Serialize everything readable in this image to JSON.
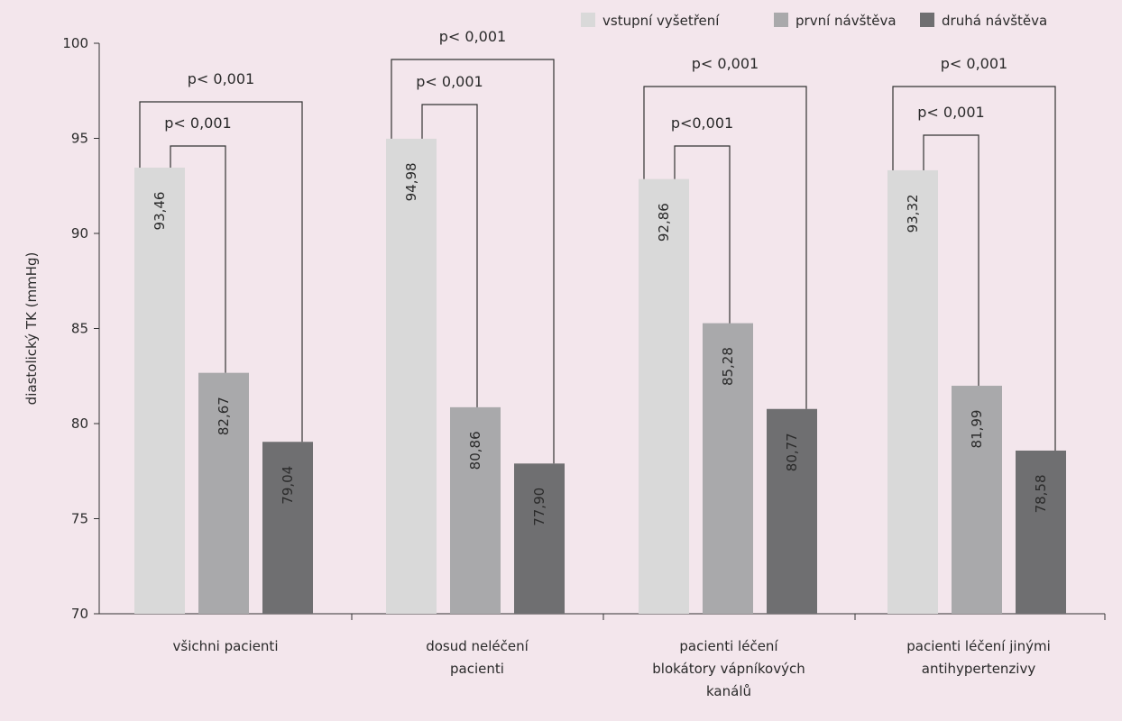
{
  "chart_data": {
    "type": "bar",
    "title": "",
    "xlabel": "",
    "ylabel": "diastolický TK (mmHg)",
    "ylim": [
      70,
      100
    ],
    "yticks": [
      70,
      75,
      80,
      85,
      90,
      95,
      100
    ],
    "grid": false,
    "legend_position": "top-right",
    "categories": [
      [
        "všichni pacienti"
      ],
      [
        "dosud neléčení",
        "pacienti"
      ],
      [
        "pacienti léčení",
        "blokátory vápníkových",
        "kanálů"
      ],
      [
        "pacienti léčení jinými",
        "antihypertenzivy"
      ]
    ],
    "series": [
      {
        "name": "vstupní vyšetření",
        "color": "#d9d9d9",
        "values": [
          93.46,
          94.98,
          92.86,
          93.32
        ],
        "labels": [
          "93,46",
          "94,98",
          "92,86",
          "93,32"
        ]
      },
      {
        "name": "první návštěva",
        "color": "#a9a9ab",
        "values": [
          82.67,
          80.86,
          85.28,
          81.99
        ],
        "labels": [
          "82,67",
          "80,86",
          "85,28",
          "81,99"
        ]
      },
      {
        "name": "druhá návštěva",
        "color": "#6f6f71",
        "values": [
          79.04,
          77.9,
          80.77,
          78.58
        ],
        "labels": [
          "79,04",
          "77,90",
          "80,77",
          "78,58"
        ]
      }
    ],
    "annotations": [
      {
        "category": 0,
        "from": 0,
        "to": 2,
        "label": "p< 0,001"
      },
      {
        "category": 0,
        "from": 0,
        "to": 1,
        "label": "p< 0,001"
      },
      {
        "category": 1,
        "from": 0,
        "to": 2,
        "label": "p< 0,001"
      },
      {
        "category": 1,
        "from": 0,
        "to": 1,
        "label": "p< 0,001"
      },
      {
        "category": 2,
        "from": 0,
        "to": 2,
        "label": "p< 0,001"
      },
      {
        "category": 2,
        "from": 0,
        "to": 1,
        "label": "p<0,001"
      },
      {
        "category": 3,
        "from": 0,
        "to": 2,
        "label": "p< 0,001"
      },
      {
        "category": 3,
        "from": 0,
        "to": 1,
        "label": "p< 0,001"
      }
    ]
  }
}
